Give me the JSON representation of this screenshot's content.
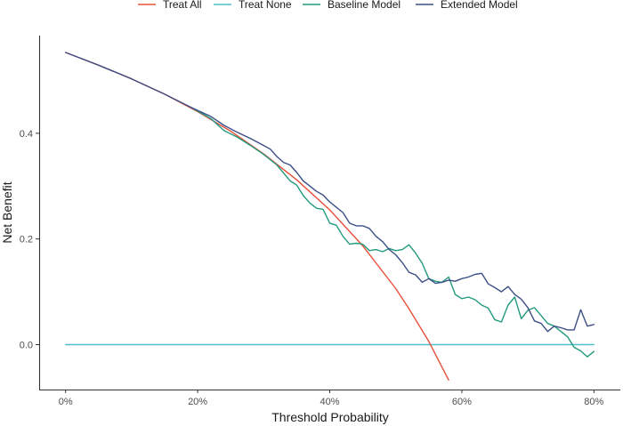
{
  "chart_data": {
    "type": "line",
    "xlabel": "Threshold Probability",
    "ylabel": "Net Benefit",
    "xlim": [
      -0.04,
      0.84
    ],
    "ylim": [
      -0.085,
      0.585
    ],
    "x_ticks": [
      0,
      0.2,
      0.4,
      0.6,
      0.8
    ],
    "x_tick_labels": [
      "0%",
      "20%",
      "40%",
      "60%",
      "80%"
    ],
    "y_ticks": [
      0.0,
      0.2,
      0.4
    ],
    "y_tick_labels": [
      "0.0",
      "0.2",
      "0.4"
    ],
    "grid": false,
    "legend_position": "top",
    "series": [
      {
        "name": "Treat All",
        "color": "#e8503a",
        "x": [
          0.0,
          0.05,
          0.1,
          0.15,
          0.2,
          0.25,
          0.3,
          0.35,
          0.4,
          0.45,
          0.5,
          0.52,
          0.55,
          0.58
        ],
        "values": [
          0.553,
          0.529,
          0.503,
          0.474,
          0.441,
          0.404,
          0.361,
          0.312,
          0.255,
          0.187,
          0.106,
          0.068,
          0.006,
          -0.067
        ]
      },
      {
        "name": "Treat None",
        "color": "#4fbfcc",
        "x": [
          0.0,
          0.8
        ],
        "values": [
          0.0,
          0.0
        ]
      },
      {
        "name": "Baseline Model",
        "color": "#229a7e",
        "x": [
          0.19,
          0.22,
          0.24,
          0.26,
          0.28,
          0.3,
          0.32,
          0.34,
          0.35,
          0.36,
          0.37,
          0.38,
          0.39,
          0.4,
          0.41,
          0.42,
          0.43,
          0.44,
          0.45,
          0.46,
          0.47,
          0.48,
          0.49,
          0.5,
          0.51,
          0.52,
          0.53,
          0.54,
          0.55,
          0.56,
          0.57,
          0.58,
          0.59,
          0.6,
          0.61,
          0.62,
          0.63,
          0.64,
          0.65,
          0.66,
          0.67,
          0.68,
          0.69,
          0.7,
          0.71,
          0.72,
          0.73,
          0.74,
          0.75,
          0.76,
          0.77,
          0.78,
          0.79,
          0.8
        ],
        "values": [
          0.449,
          0.428,
          0.405,
          0.393,
          0.377,
          0.36,
          0.34,
          0.31,
          0.302,
          0.282,
          0.268,
          0.258,
          0.256,
          0.23,
          0.226,
          0.205,
          0.19,
          0.192,
          0.19,
          0.178,
          0.18,
          0.176,
          0.182,
          0.178,
          0.18,
          0.189,
          0.173,
          0.154,
          0.125,
          0.12,
          0.118,
          0.128,
          0.095,
          0.087,
          0.09,
          0.085,
          0.075,
          0.069,
          0.047,
          0.043,
          0.075,
          0.09,
          0.049,
          0.065,
          0.07,
          0.055,
          0.04,
          0.035,
          0.025,
          0.015,
          -0.005,
          -0.012,
          -0.023,
          -0.013
        ]
      },
      {
        "name": "Extended Model",
        "color": "#3c4f86",
        "x": [
          0.0,
          0.05,
          0.1,
          0.15,
          0.19,
          0.22,
          0.24,
          0.26,
          0.28,
          0.3,
          0.31,
          0.32,
          0.33,
          0.34,
          0.35,
          0.36,
          0.37,
          0.38,
          0.39,
          0.4,
          0.41,
          0.42,
          0.43,
          0.44,
          0.45,
          0.46,
          0.47,
          0.48,
          0.49,
          0.5,
          0.51,
          0.52,
          0.53,
          0.54,
          0.55,
          0.56,
          0.57,
          0.58,
          0.59,
          0.6,
          0.61,
          0.62,
          0.63,
          0.64,
          0.65,
          0.66,
          0.67,
          0.68,
          0.69,
          0.7,
          0.71,
          0.72,
          0.73,
          0.74,
          0.75,
          0.76,
          0.77,
          0.78,
          0.79,
          0.8
        ],
        "values": [
          0.553,
          0.529,
          0.503,
          0.474,
          0.449,
          0.432,
          0.415,
          0.402,
          0.39,
          0.377,
          0.37,
          0.356,
          0.345,
          0.34,
          0.326,
          0.31,
          0.3,
          0.29,
          0.283,
          0.27,
          0.26,
          0.25,
          0.23,
          0.225,
          0.225,
          0.22,
          0.205,
          0.195,
          0.18,
          0.17,
          0.155,
          0.137,
          0.132,
          0.118,
          0.125,
          0.116,
          0.118,
          0.122,
          0.12,
          0.125,
          0.128,
          0.133,
          0.135,
          0.115,
          0.108,
          0.1,
          0.11,
          0.095,
          0.086,
          0.07,
          0.045,
          0.04,
          0.025,
          0.035,
          0.032,
          0.028,
          0.028,
          0.066,
          0.035,
          0.038
        ]
      }
    ]
  }
}
